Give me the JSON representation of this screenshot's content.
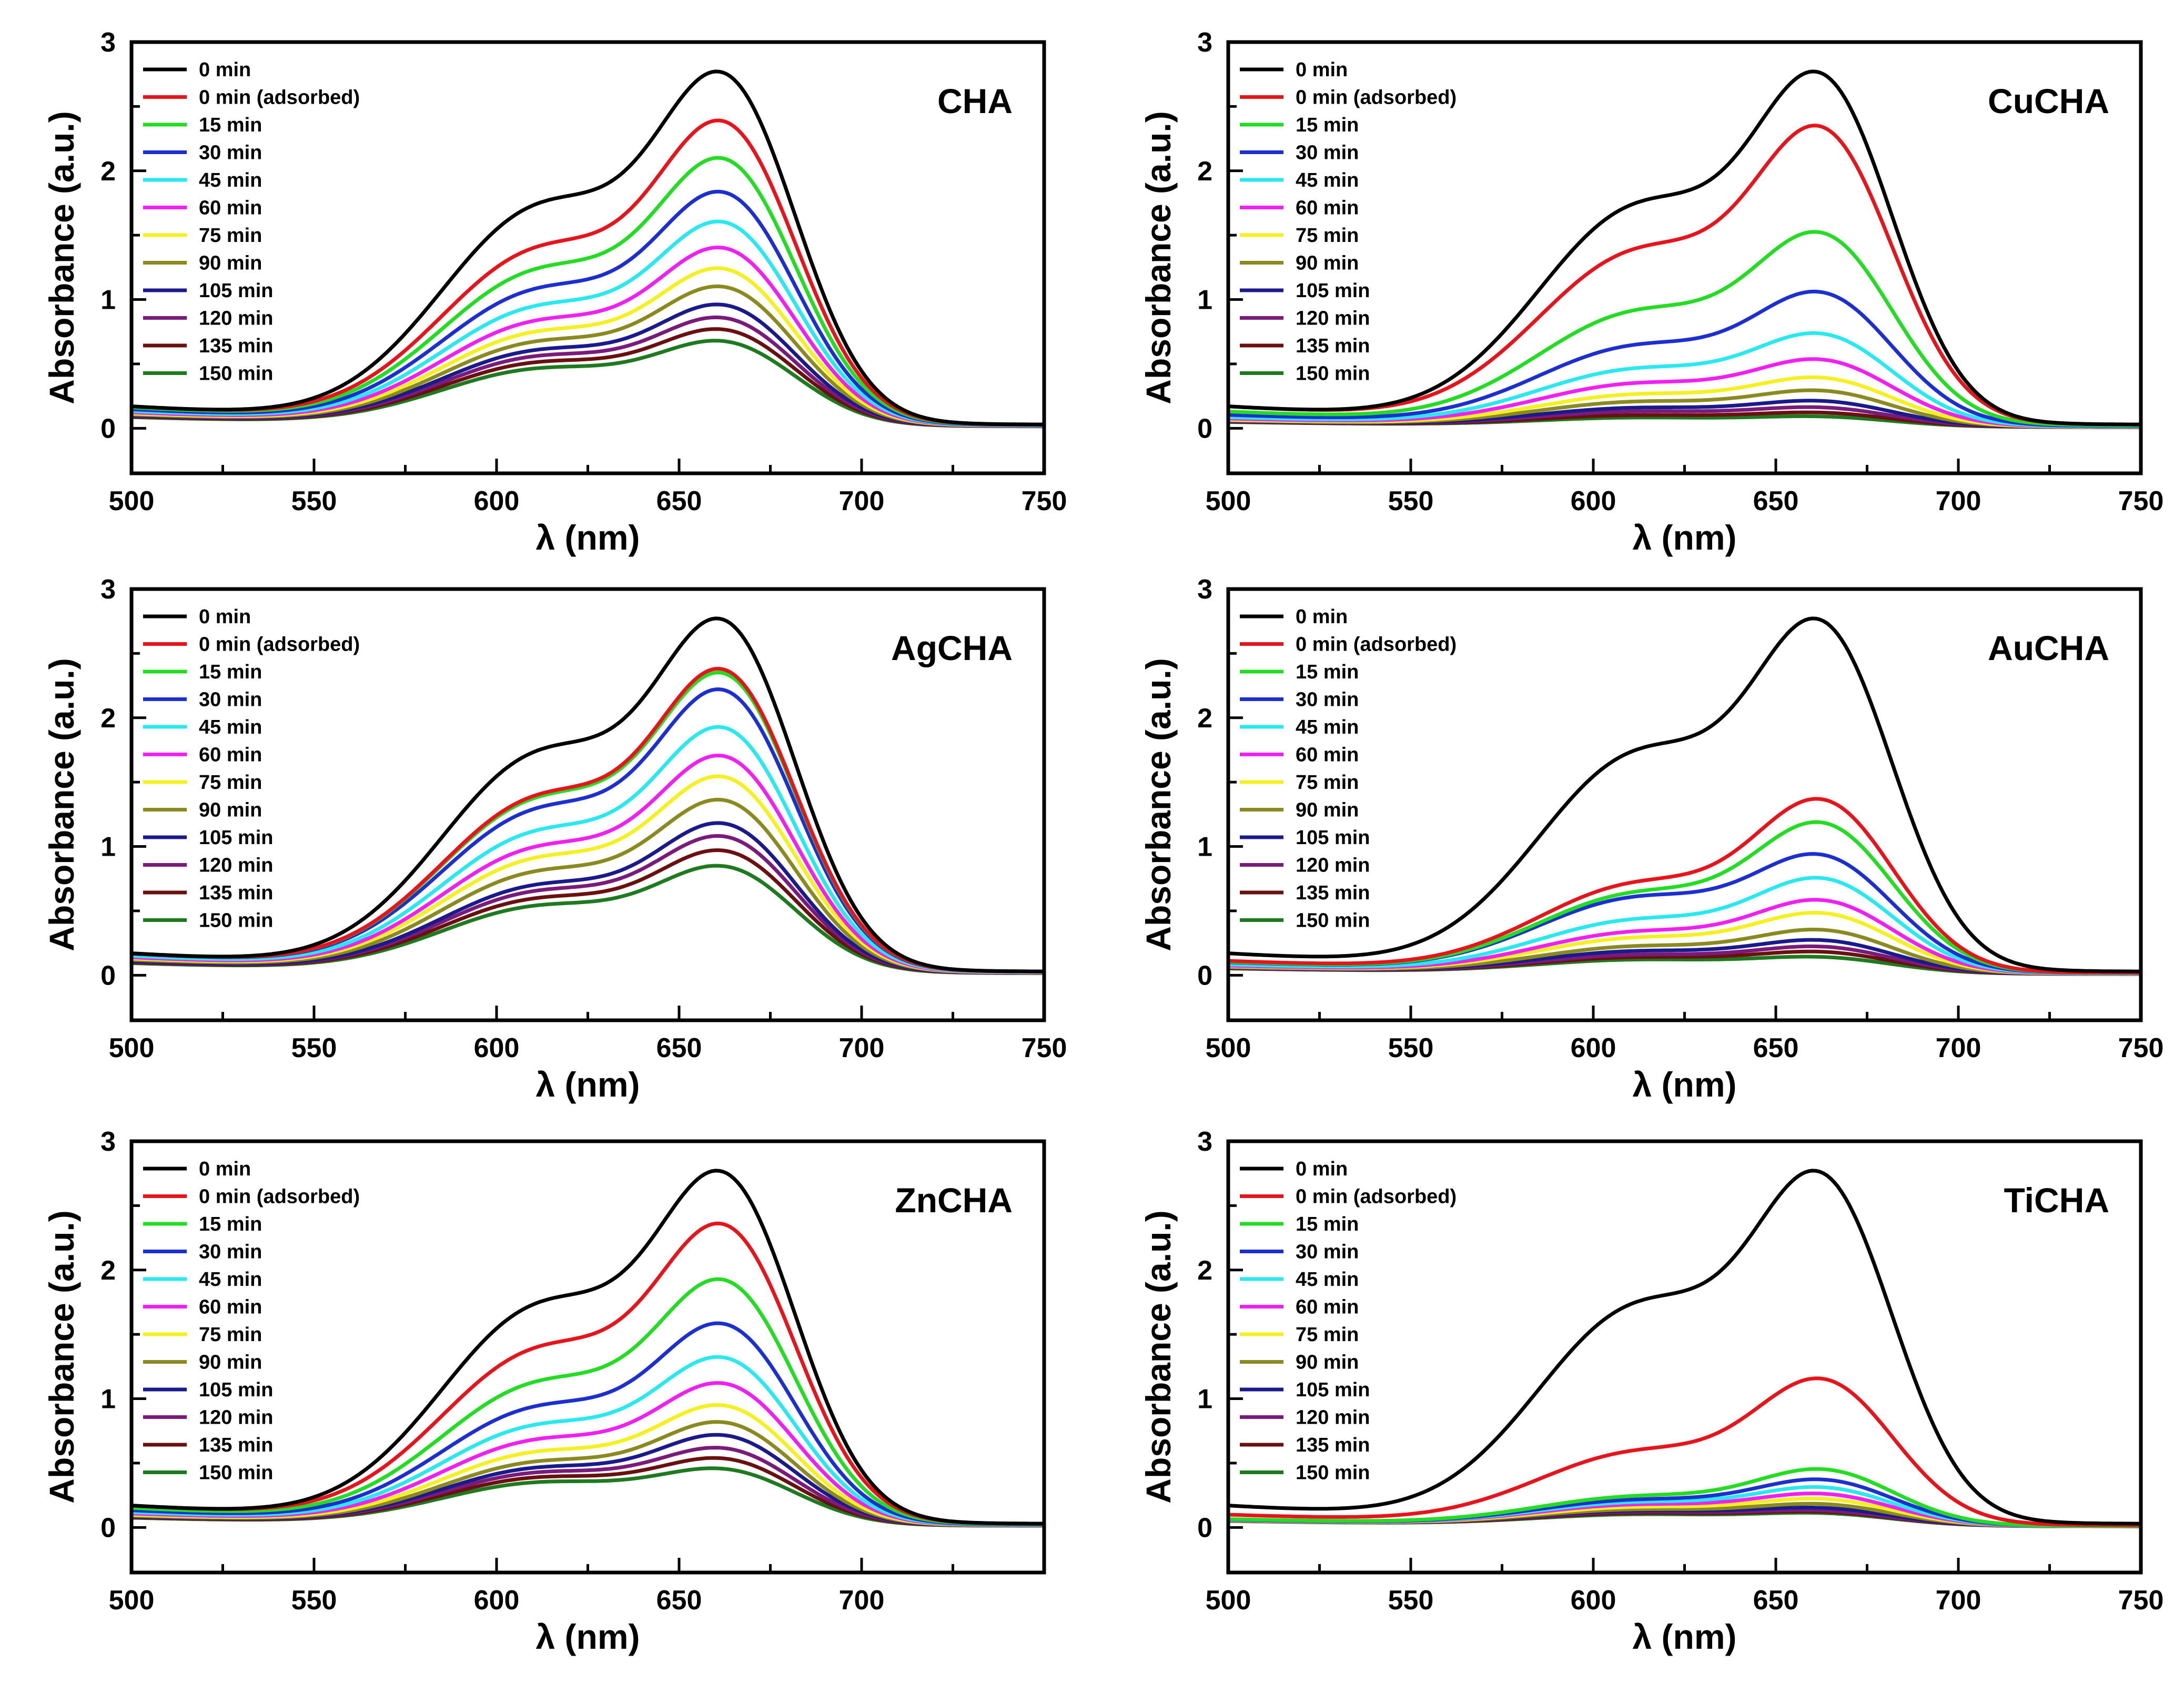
{
  "figure": {
    "colors": [
      "#000000",
      "#e8141c",
      "#22dd22",
      "#1c2fd0",
      "#28e8f0",
      "#f020f0",
      "#f5f020",
      "#8b8a1e",
      "#1a1a8c",
      "#7a1a7a",
      "#6b1010",
      "#1e7a1e"
    ],
    "legend_entries": [
      "0 min",
      "0 min (adsorbed)",
      "15 min",
      "30 min",
      "45 min",
      "60 min",
      "75 min",
      "90 min",
      "105 min",
      "120 min",
      "135 min",
      "150 min"
    ]
  },
  "chart_data": [
    {
      "type": "line",
      "panel_label": "CHA",
      "xlabel": "λ (nm)",
      "ylabel": "Absorbance (a.u.)",
      "xlim": [
        500,
        750
      ],
      "ylim": [
        -0.35,
        3
      ],
      "xticks": [
        500,
        550,
        600,
        650,
        700,
        750
      ],
      "yticks": [
        0,
        1,
        2,
        3
      ],
      "legend_position": "top-left",
      "series": [
        {
          "name": "0 min",
          "shoulder_613nm": 1.82,
          "peak_664nm": 2.74
        },
        {
          "name": "0 min (adsorbed)",
          "shoulder_613nm": 1.46,
          "peak_664nm": 2.36
        },
        {
          "name": "15 min",
          "shoulder_613nm": 1.28,
          "peak_664nm": 2.07
        },
        {
          "name": "30 min",
          "shoulder_613nm": 1.12,
          "peak_664nm": 1.81
        },
        {
          "name": "45 min",
          "shoulder_613nm": 0.98,
          "peak_664nm": 1.58
        },
        {
          "name": "60 min",
          "shoulder_613nm": 0.86,
          "peak_664nm": 1.38
        },
        {
          "name": "75 min",
          "shoulder_613nm": 0.77,
          "peak_664nm": 1.22
        },
        {
          "name": "90 min",
          "shoulder_613nm": 0.69,
          "peak_664nm": 1.08
        },
        {
          "name": "105 min",
          "shoulder_613nm": 0.62,
          "peak_664nm": 0.94
        },
        {
          "name": "120 min",
          "shoulder_613nm": 0.57,
          "peak_664nm": 0.84
        },
        {
          "name": "135 min",
          "shoulder_613nm": 0.52,
          "peak_664nm": 0.75
        },
        {
          "name": "150 min",
          "shoulder_613nm": 0.47,
          "peak_664nm": 0.66
        }
      ]
    },
    {
      "type": "line",
      "panel_label": "CuCHA",
      "xlabel": "λ (nm)",
      "ylabel": "Absorbance (a.u.)",
      "xlim": [
        500,
        750
      ],
      "ylim": [
        -0.35,
        3
      ],
      "xticks": [
        500,
        550,
        600,
        650,
        700,
        750
      ],
      "yticks": [
        0,
        1,
        2,
        3
      ],
      "legend_position": "top-left",
      "series": [
        {
          "name": "0 min",
          "shoulder_613nm": 1.82,
          "peak_664nm": 2.74
        },
        {
          "name": "0 min (adsorbed)",
          "shoulder_613nm": 1.44,
          "peak_664nm": 2.32
        },
        {
          "name": "15 min",
          "shoulder_613nm": 0.94,
          "peak_664nm": 1.5
        },
        {
          "name": "30 min",
          "shoulder_613nm": 0.66,
          "peak_664nm": 1.04
        },
        {
          "name": "45 min",
          "shoulder_613nm": 0.47,
          "peak_664nm": 0.72
        },
        {
          "name": "60 min",
          "shoulder_613nm": 0.35,
          "peak_664nm": 0.52
        },
        {
          "name": "75 min",
          "shoulder_613nm": 0.26,
          "peak_664nm": 0.38
        },
        {
          "name": "90 min",
          "shoulder_613nm": 0.2,
          "peak_664nm": 0.28
        },
        {
          "name": "105 min",
          "shoulder_613nm": 0.15,
          "peak_664nm": 0.2
        },
        {
          "name": "120 min",
          "shoulder_613nm": 0.12,
          "peak_664nm": 0.15
        },
        {
          "name": "135 min",
          "shoulder_613nm": 0.09,
          "peak_664nm": 0.11
        },
        {
          "name": "150 min",
          "shoulder_613nm": 0.07,
          "peak_664nm": 0.08
        }
      ]
    },
    {
      "type": "line",
      "panel_label": "AgCHA",
      "xlabel": "λ (nm)",
      "ylabel": "Absorbance (a.u.)",
      "xlim": [
        500,
        750
      ],
      "ylim": [
        -0.35,
        3
      ],
      "xticks": [
        500,
        550,
        600,
        650,
        700,
        750
      ],
      "yticks": [
        0,
        1,
        2,
        3
      ],
      "legend_position": "top-left",
      "series": [
        {
          "name": "0 min",
          "shoulder_613nm": 1.82,
          "peak_664nm": 2.74
        },
        {
          "name": "0 min (adsorbed)",
          "shoulder_613nm": 1.45,
          "peak_664nm": 2.35
        },
        {
          "name": "15 min",
          "shoulder_613nm": 1.43,
          "peak_664nm": 2.32
        },
        {
          "name": "30 min",
          "shoulder_613nm": 1.34,
          "peak_664nm": 2.19
        },
        {
          "name": "45 min",
          "shoulder_613nm": 1.16,
          "peak_664nm": 1.9
        },
        {
          "name": "60 min",
          "shoulder_613nm": 1.03,
          "peak_664nm": 1.68
        },
        {
          "name": "75 min",
          "shoulder_613nm": 0.94,
          "peak_664nm": 1.52
        },
        {
          "name": "90 min",
          "shoulder_613nm": 0.83,
          "peak_664nm": 1.34
        },
        {
          "name": "105 min",
          "shoulder_613nm": 0.72,
          "peak_664nm": 1.16
        },
        {
          "name": "120 min",
          "shoulder_613nm": 0.67,
          "peak_664nm": 1.06
        },
        {
          "name": "135 min",
          "shoulder_613nm": 0.61,
          "peak_664nm": 0.95
        },
        {
          "name": "150 min",
          "shoulder_613nm": 0.55,
          "peak_664nm": 0.83
        }
      ]
    },
    {
      "type": "line",
      "panel_label": "AuCHA",
      "xlabel": "λ (nm)",
      "ylabel": "Absorbance (a.u.)",
      "xlim": [
        500,
        750
      ],
      "ylim": [
        -0.35,
        3
      ],
      "xticks": [
        500,
        550,
        600,
        650,
        700,
        750
      ],
      "yticks": [
        0,
        1,
        2,
        3
      ],
      "legend_position": "top-left",
      "series": [
        {
          "name": "0 min",
          "shoulder_613nm": 1.82,
          "peak_664nm": 2.74
        },
        {
          "name": "0 min (adsorbed)",
          "shoulder_613nm": 0.74,
          "peak_664nm": 1.35
        },
        {
          "name": "15 min",
          "shoulder_613nm": 0.66,
          "peak_664nm": 1.17
        },
        {
          "name": "30 min",
          "shoulder_613nm": 0.62,
          "peak_664nm": 0.92
        },
        {
          "name": "45 min",
          "shoulder_613nm": 0.44,
          "peak_664nm": 0.74
        },
        {
          "name": "60 min",
          "shoulder_613nm": 0.34,
          "peak_664nm": 0.57
        },
        {
          "name": "75 min",
          "shoulder_613nm": 0.29,
          "peak_664nm": 0.47
        },
        {
          "name": "90 min",
          "shoulder_613nm": 0.22,
          "peak_664nm": 0.34
        },
        {
          "name": "105 min",
          "shoulder_613nm": 0.18,
          "peak_664nm": 0.26
        },
        {
          "name": "120 min",
          "shoulder_613nm": 0.15,
          "peak_664nm": 0.21
        },
        {
          "name": "135 min",
          "shoulder_613nm": 0.13,
          "peak_664nm": 0.17
        },
        {
          "name": "150 min",
          "shoulder_613nm": 0.11,
          "peak_664nm": 0.13
        }
      ]
    },
    {
      "type": "line",
      "panel_label": "ZnCHA",
      "xlabel": "λ (nm)",
      "ylabel": "Absorbance (a.u.)",
      "xlim": [
        500,
        750
      ],
      "ylim": [
        -0.35,
        3
      ],
      "xticks": [
        500,
        550,
        600,
        650,
        700
      ],
      "yticks": [
        0,
        1,
        2,
        3
      ],
      "legend_position": "top-left",
      "series": [
        {
          "name": "0 min",
          "shoulder_613nm": 1.82,
          "peak_664nm": 2.74
        },
        {
          "name": "0 min (adsorbed)",
          "shoulder_613nm": 1.45,
          "peak_664nm": 2.33
        },
        {
          "name": "15 min",
          "shoulder_613nm": 1.17,
          "peak_664nm": 1.9
        },
        {
          "name": "30 min",
          "shoulder_613nm": 0.97,
          "peak_664nm": 1.56
        },
        {
          "name": "45 min",
          "shoulder_613nm": 0.82,
          "peak_664nm": 1.3
        },
        {
          "name": "60 min",
          "shoulder_613nm": 0.7,
          "peak_664nm": 1.1
        },
        {
          "name": "75 min",
          "shoulder_613nm": 0.6,
          "peak_664nm": 0.93
        },
        {
          "name": "90 min",
          "shoulder_613nm": 0.52,
          "peak_664nm": 0.8
        },
        {
          "name": "105 min",
          "shoulder_613nm": 0.47,
          "peak_664nm": 0.7
        },
        {
          "name": "120 min",
          "shoulder_613nm": 0.43,
          "peak_664nm": 0.6
        },
        {
          "name": "135 min",
          "shoulder_613nm": 0.39,
          "peak_664nm": 0.52
        },
        {
          "name": "150 min",
          "shoulder_613nm": 0.35,
          "peak_664nm": 0.44
        }
      ]
    },
    {
      "type": "line",
      "panel_label": "TiCHA",
      "xlabel": "λ (nm)",
      "ylabel": "Absorbance (a.u.)",
      "xlim": [
        500,
        750
      ],
      "ylim": [
        -0.35,
        3
      ],
      "xticks": [
        500,
        550,
        600,
        650,
        700,
        750
      ],
      "yticks": [
        0,
        1,
        2,
        3
      ],
      "legend_position": "top-left",
      "series": [
        {
          "name": "0 min",
          "shoulder_613nm": 1.82,
          "peak_664nm": 2.74
        },
        {
          "name": "0 min (adsorbed)",
          "shoulder_613nm": 0.61,
          "peak_664nm": 1.14
        },
        {
          "name": "15 min",
          "shoulder_613nm": 0.24,
          "peak_664nm": 0.44
        },
        {
          "name": "30 min",
          "shoulder_613nm": 0.21,
          "peak_664nm": 0.36
        },
        {
          "name": "45 min",
          "shoulder_613nm": 0.19,
          "peak_664nm": 0.3
        },
        {
          "name": "60 min",
          "shoulder_613nm": 0.17,
          "peak_664nm": 0.25
        },
        {
          "name": "75 min",
          "shoulder_613nm": 0.15,
          "peak_664nm": 0.21
        },
        {
          "name": "90 min",
          "shoulder_613nm": 0.13,
          "peak_664nm": 0.17
        },
        {
          "name": "105 min",
          "shoulder_613nm": 0.12,
          "peak_664nm": 0.14
        },
        {
          "name": "120 min",
          "shoulder_613nm": 0.11,
          "peak_664nm": 0.12
        },
        {
          "name": "135 min",
          "shoulder_613nm": 0.1,
          "peak_664nm": 0.11
        },
        {
          "name": "150 min",
          "shoulder_613nm": 0.09,
          "peak_664nm": 0.1
        }
      ]
    }
  ]
}
